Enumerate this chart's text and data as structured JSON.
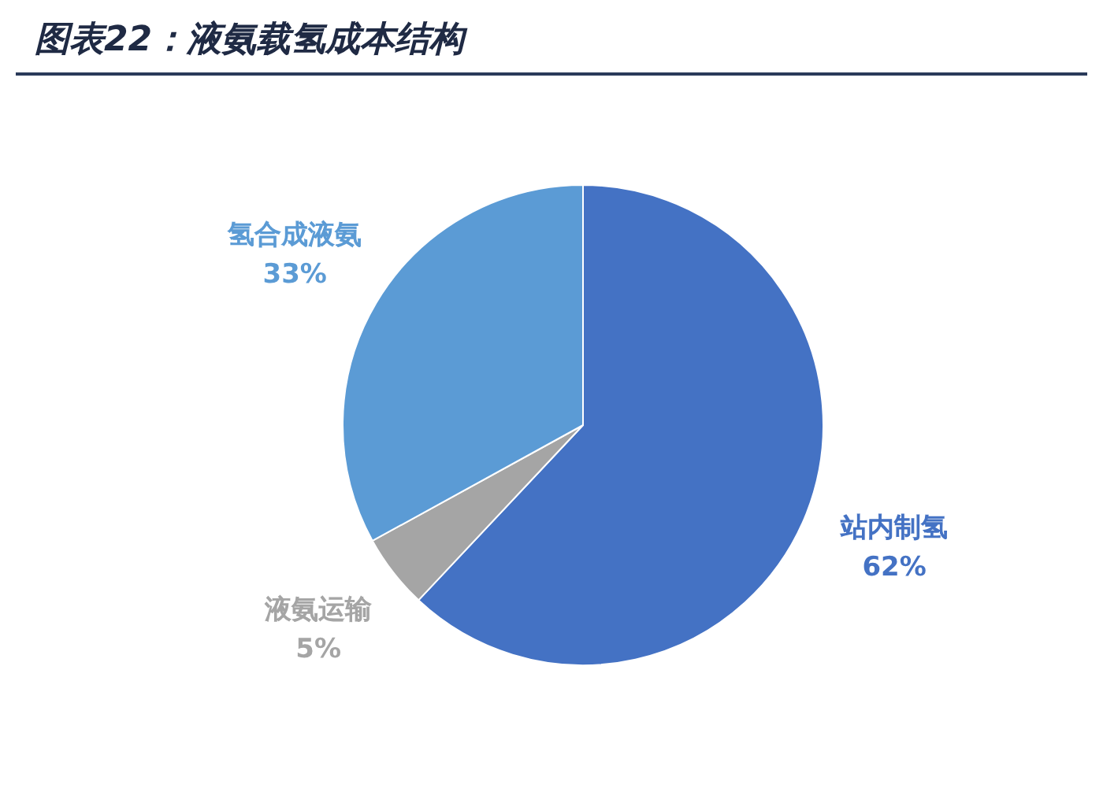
{
  "chart_data": {
    "type": "pie",
    "title": "图表22：液氨载氢成本结构",
    "categories": [
      "站内制氢",
      "液氨运输",
      "氢合成液氨"
    ],
    "values": [
      62,
      5,
      33
    ],
    "value_labels": [
      "62%",
      "5%",
      "33%"
    ],
    "colors": [
      "#4472c4",
      "#a5a5a5",
      "#5b9bd5"
    ],
    "legend": false
  }
}
